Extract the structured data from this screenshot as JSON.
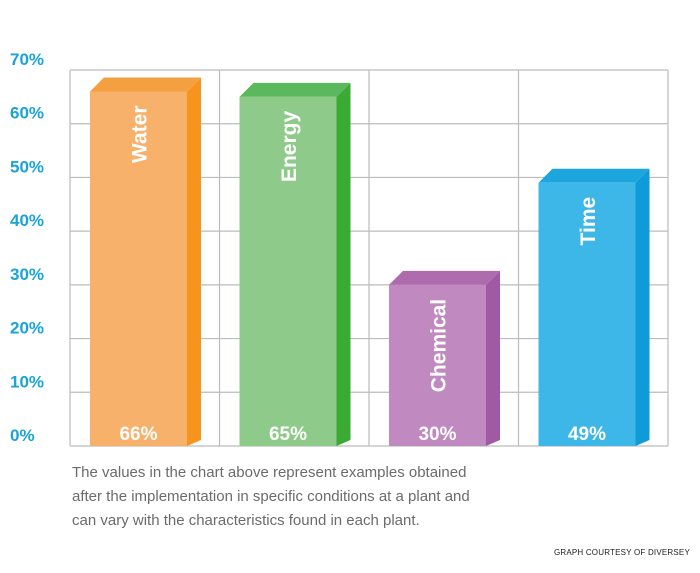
{
  "chart_data": {
    "type": "bar",
    "categories": [
      "Water",
      "Energy",
      "Chemical",
      "Time"
    ],
    "values": [
      66,
      65,
      30,
      49
    ],
    "value_labels": [
      "66%",
      "65%",
      "30%",
      "49%"
    ],
    "y_tick_labels": [
      "0%",
      "10%",
      "20%",
      "30%",
      "40%",
      "50%",
      "60%",
      "70%"
    ],
    "ylim": [
      0,
      70
    ],
    "grid": true,
    "colors": {
      "Water": {
        "front": "#f7b16a",
        "top": "#f5a040",
        "side": "#f7941d"
      },
      "Energy": {
        "front": "#8ecb8a",
        "top": "#5cb85c",
        "side": "#3aaa35"
      },
      "Chemical": {
        "front": "#c08ac0",
        "top": "#ae6cae",
        "side": "#a05aa5"
      },
      "Time": {
        "front": "#3db7e8",
        "top": "#1da6dd",
        "side": "#0f9bd7"
      }
    },
    "tick_color": "#1aa3d9",
    "grid_color": "#bcbcbc"
  },
  "caption": {
    "lines": [
      "The values in the chart above represent examples obtained",
      "after the implementation in specific conditions at a plant and",
      "can vary with the characteristics found in each plant."
    ]
  },
  "credit": "GRAPH COURTESY OF DIVERSEY"
}
